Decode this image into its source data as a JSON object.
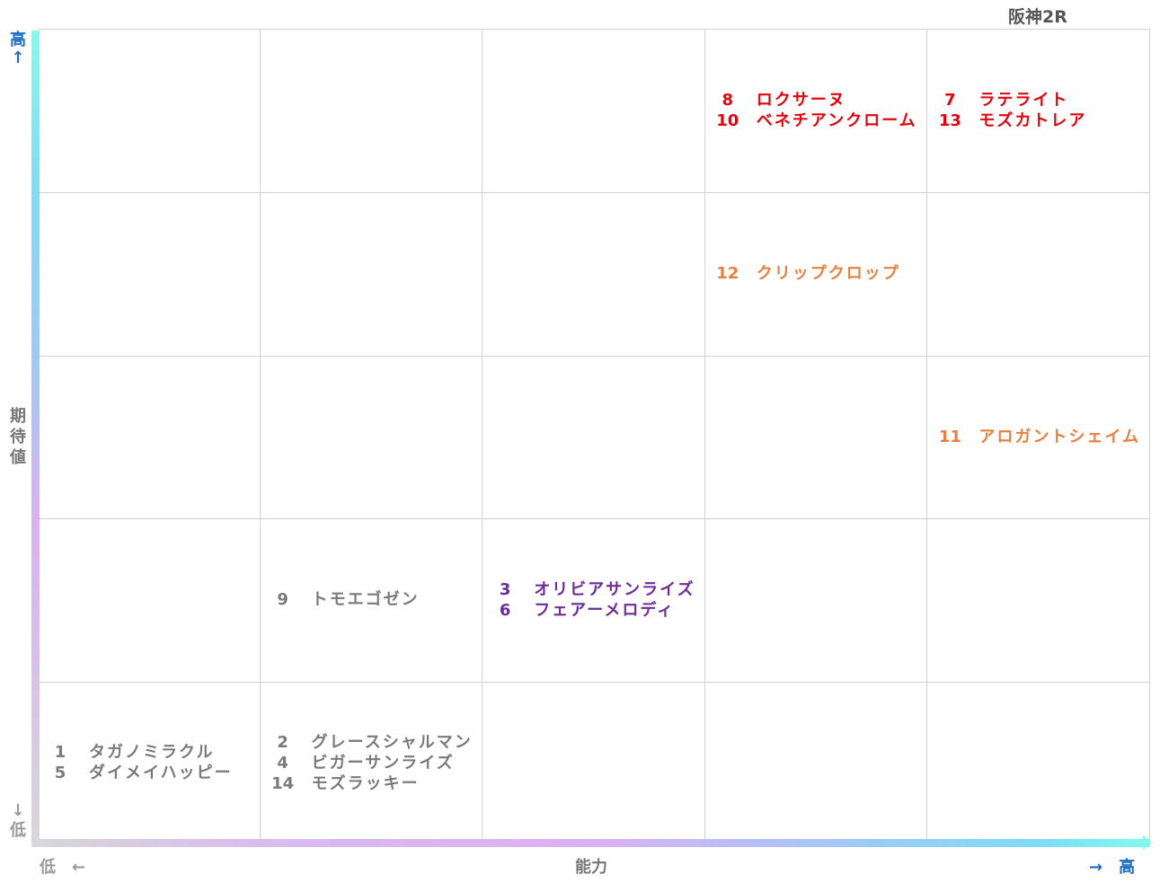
{
  "title": "阪神2R",
  "axes": {
    "y_high": "高↑",
    "y_low": "↓低",
    "y_label": "期待値",
    "x_low": "低　←",
    "x_label": "能力",
    "x_high": "→　高"
  },
  "chart_data": {
    "type": "table",
    "grid": {
      "columns": 5,
      "rows": 5
    },
    "x_axis_label": "能力",
    "y_axis_label": "期待値",
    "cells": [
      {
        "col": 4,
        "row": 1,
        "color": "#e8000b",
        "entries": [
          {
            "num": "8",
            "name": "ロクサーヌ"
          },
          {
            "num": "10",
            "name": "ベネチアンクローム"
          }
        ]
      },
      {
        "col": 5,
        "row": 1,
        "color": "#e8000b",
        "entries": [
          {
            "num": "7",
            "name": "ラテライト"
          },
          {
            "num": "13",
            "name": "モズカトレア"
          }
        ]
      },
      {
        "col": 4,
        "row": 2,
        "color": "#ea7e3b",
        "entries": [
          {
            "num": "12",
            "name": "クリップクロップ"
          }
        ]
      },
      {
        "col": 5,
        "row": 3,
        "color": "#ea7e3b",
        "entries": [
          {
            "num": "11",
            "name": "アロガントシェイム"
          }
        ]
      },
      {
        "col": 2,
        "row": 4,
        "color": "#7a7a7a",
        "entries": [
          {
            "num": "9",
            "name": "トモエゴゼン"
          }
        ]
      },
      {
        "col": 3,
        "row": 4,
        "color": "#6f2b9a",
        "entries": [
          {
            "num": "3",
            "name": "オリビアサンライズ"
          },
          {
            "num": "6",
            "name": "フェアーメロディ"
          }
        ]
      },
      {
        "col": 1,
        "row": 5,
        "color": "#7a7a7a",
        "entries": [
          {
            "num": "1",
            "name": "タガノミラクル"
          },
          {
            "num": "5",
            "name": "ダイメイハッピー"
          }
        ]
      },
      {
        "col": 2,
        "row": 5,
        "color": "#7a7a7a",
        "entries": [
          {
            "num": "2",
            "name": "グレースシャルマン"
          },
          {
            "num": "4",
            "name": "ビガーサンライズ"
          },
          {
            "num": "14",
            "name": "モズラッキー"
          }
        ]
      }
    ]
  }
}
